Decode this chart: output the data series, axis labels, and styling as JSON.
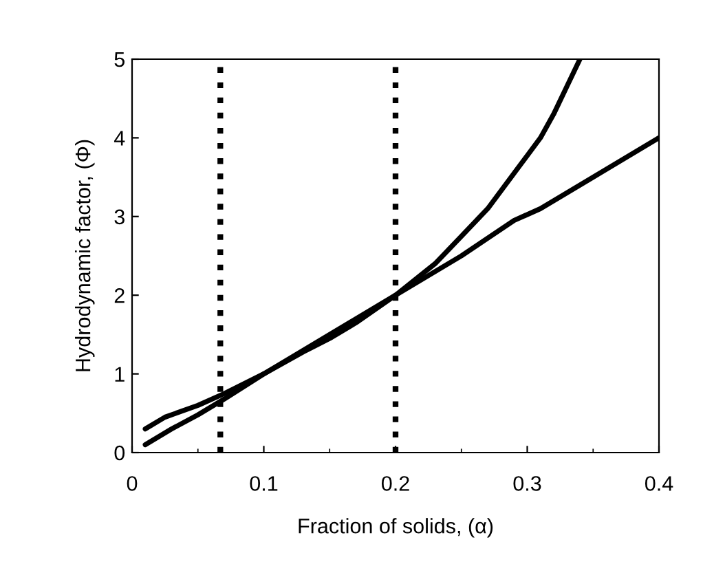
{
  "chart_data": {
    "type": "line",
    "xlabel": "Fraction of solids, (α)",
    "ylabel": "Hydrodynamic factor, (Φ)",
    "xlim": [
      0,
      0.4
    ],
    "ylim": [
      0,
      5
    ],
    "xticks": [
      0,
      0.1,
      0.2,
      0.3,
      0.4
    ],
    "yticks": [
      0,
      1,
      2,
      3,
      4,
      5
    ],
    "grid": false,
    "line_style": "solid",
    "marker": "none",
    "series": [
      {
        "color": "#000000",
        "x": [
          0.01,
          0.03,
          0.05,
          0.07,
          0.1,
          0.13,
          0.15,
          0.17,
          0.2,
          0.23,
          0.25,
          0.27,
          0.29,
          0.31,
          0.32,
          0.33,
          0.34
        ],
        "values": [
          0.1,
          0.3,
          0.48,
          0.68,
          1.0,
          1.28,
          1.45,
          1.65,
          2.0,
          2.4,
          2.75,
          3.1,
          3.55,
          4.0,
          4.3,
          4.65,
          5.0
        ]
      },
      {
        "color": "#000000",
        "x": [
          0.01,
          0.025,
          0.05,
          0.07,
          0.1,
          0.15,
          0.2,
          0.25,
          0.29,
          0.31,
          0.35,
          0.4
        ],
        "values": [
          0.3,
          0.45,
          0.6,
          0.75,
          1.0,
          1.5,
          2.0,
          2.5,
          2.95,
          3.1,
          3.5,
          4.0
        ]
      }
    ],
    "ref_lines": [
      {
        "axis": "x",
        "value": 0.067,
        "color": "#000000",
        "line_style": "dotted"
      },
      {
        "axis": "x",
        "value": 0.2,
        "color": "#000000",
        "line_style": "dotted"
      }
    ]
  }
}
